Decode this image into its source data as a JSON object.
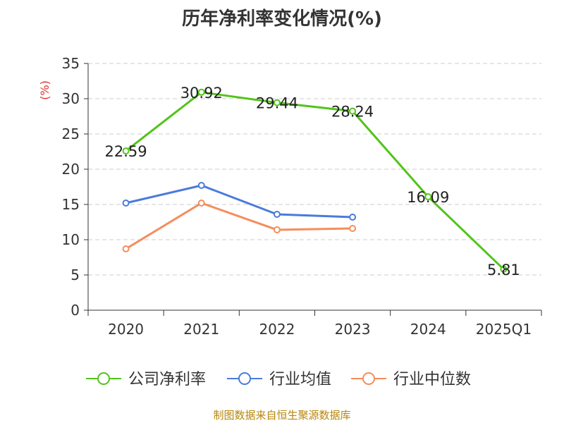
{
  "chart_data": {
    "type": "line",
    "title": "历年净利率变化情况(%)",
    "ylabel": "(%)",
    "xlabel": "",
    "ylim": [
      0,
      35
    ],
    "yticks": [
      0,
      5,
      10,
      15,
      20,
      25,
      30,
      35
    ],
    "grid": true,
    "categories": [
      "2020",
      "2021",
      "2022",
      "2023",
      "2024",
      "2025Q1"
    ],
    "series": [
      {
        "name": "公司净利率",
        "color": "#52c41a",
        "values": [
          22.59,
          30.92,
          29.44,
          28.24,
          16.09,
          5.81
        ],
        "labels": [
          "22.59",
          "30.92",
          "29.44",
          "28.24",
          "16.09",
          "5.81"
        ]
      },
      {
        "name": "行业均值",
        "color": "#4a7bdc",
        "values": [
          15.2,
          17.7,
          13.6,
          13.2,
          null,
          null
        ],
        "labels": null
      },
      {
        "name": "行业中位数",
        "color": "#f58d5c",
        "values": [
          8.7,
          15.2,
          11.4,
          11.6,
          null,
          null
        ],
        "labels": null
      }
    ],
    "legend_position": "bottom"
  },
  "footer": {
    "source": "制图数据来自恒生聚源数据库"
  }
}
